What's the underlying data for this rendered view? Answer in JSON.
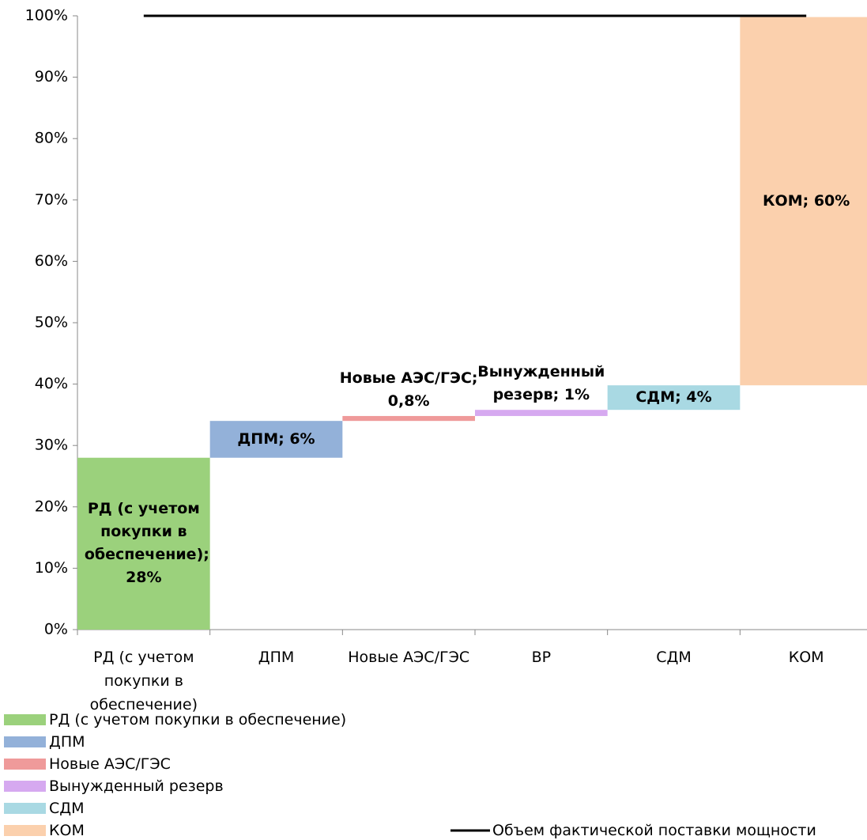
{
  "chart_data": {
    "type": "waterfall",
    "categories": [
      "РД (с учетом покупки в обеспечение)",
      "ДПМ",
      "Новые АЭС/ГЭС",
      "ВР",
      "СДМ",
      "КОМ"
    ],
    "series": [
      {
        "name": "РД (с учетом покупки в обеспечение)",
        "color": "#9bd17c",
        "values": [
          28,
          null,
          null,
          null,
          null,
          null
        ],
        "value_labels": [
          "РД (с учетом покупки в обеспечение); 28%",
          null,
          null,
          null,
          null,
          null
        ]
      },
      {
        "name": "ДПМ",
        "color": "#93b1d9",
        "values": [
          null,
          6,
          null,
          null,
          null,
          null
        ],
        "value_labels": [
          null,
          "ДПМ; 6%",
          null,
          null,
          null,
          null
        ]
      },
      {
        "name": "Новые АЭС/ГЭС",
        "color": "#ef9a9a",
        "values": [
          null,
          null,
          0.8,
          null,
          null,
          null
        ],
        "value_labels": [
          null,
          null,
          "Новые АЭС/ГЭС; 0,8%",
          null,
          null,
          null
        ]
      },
      {
        "name": "Вынужденный резерв",
        "color": "#d6a9f0",
        "values": [
          null,
          null,
          null,
          1,
          null,
          null
        ],
        "value_labels": [
          null,
          null,
          null,
          "Вынужденный резерв; 1%",
          null,
          null
        ]
      },
      {
        "name": "СДМ",
        "color": "#a9d9e3",
        "values": [
          null,
          null,
          null,
          null,
          4,
          null
        ],
        "value_labels": [
          null,
          null,
          null,
          null,
          "СДМ; 4%",
          null
        ]
      },
      {
        "name": "КОМ",
        "color": "#fbd0ad",
        "values": [
          null,
          null,
          null,
          null,
          null,
          60
        ],
        "value_labels": [
          null,
          null,
          null,
          null,
          null,
          "КОМ; 60%"
        ]
      },
      {
        "name": "Объем фактической поставки мощности",
        "type": "line",
        "color": "#000000",
        "values": [
          100,
          100,
          100,
          100,
          100,
          100
        ]
      }
    ],
    "ylim": [
      0,
      100
    ],
    "yticks": [
      {
        "value": 0,
        "label": "0%"
      },
      {
        "value": 10,
        "label": "10%"
      },
      {
        "value": 20,
        "label": "20%"
      },
      {
        "value": 30,
        "label": "30%"
      },
      {
        "value": 40,
        "label": "40%"
      },
      {
        "value": 50,
        "label": "50%"
      },
      {
        "value": 60,
        "label": "60%"
      },
      {
        "value": 70,
        "label": "70%"
      },
      {
        "value": 80,
        "label": "80%"
      },
      {
        "value": 90,
        "label": "90%"
      },
      {
        "value": 100,
        "label": "100%"
      }
    ],
    "grid": false,
    "legend": "bottom"
  }
}
